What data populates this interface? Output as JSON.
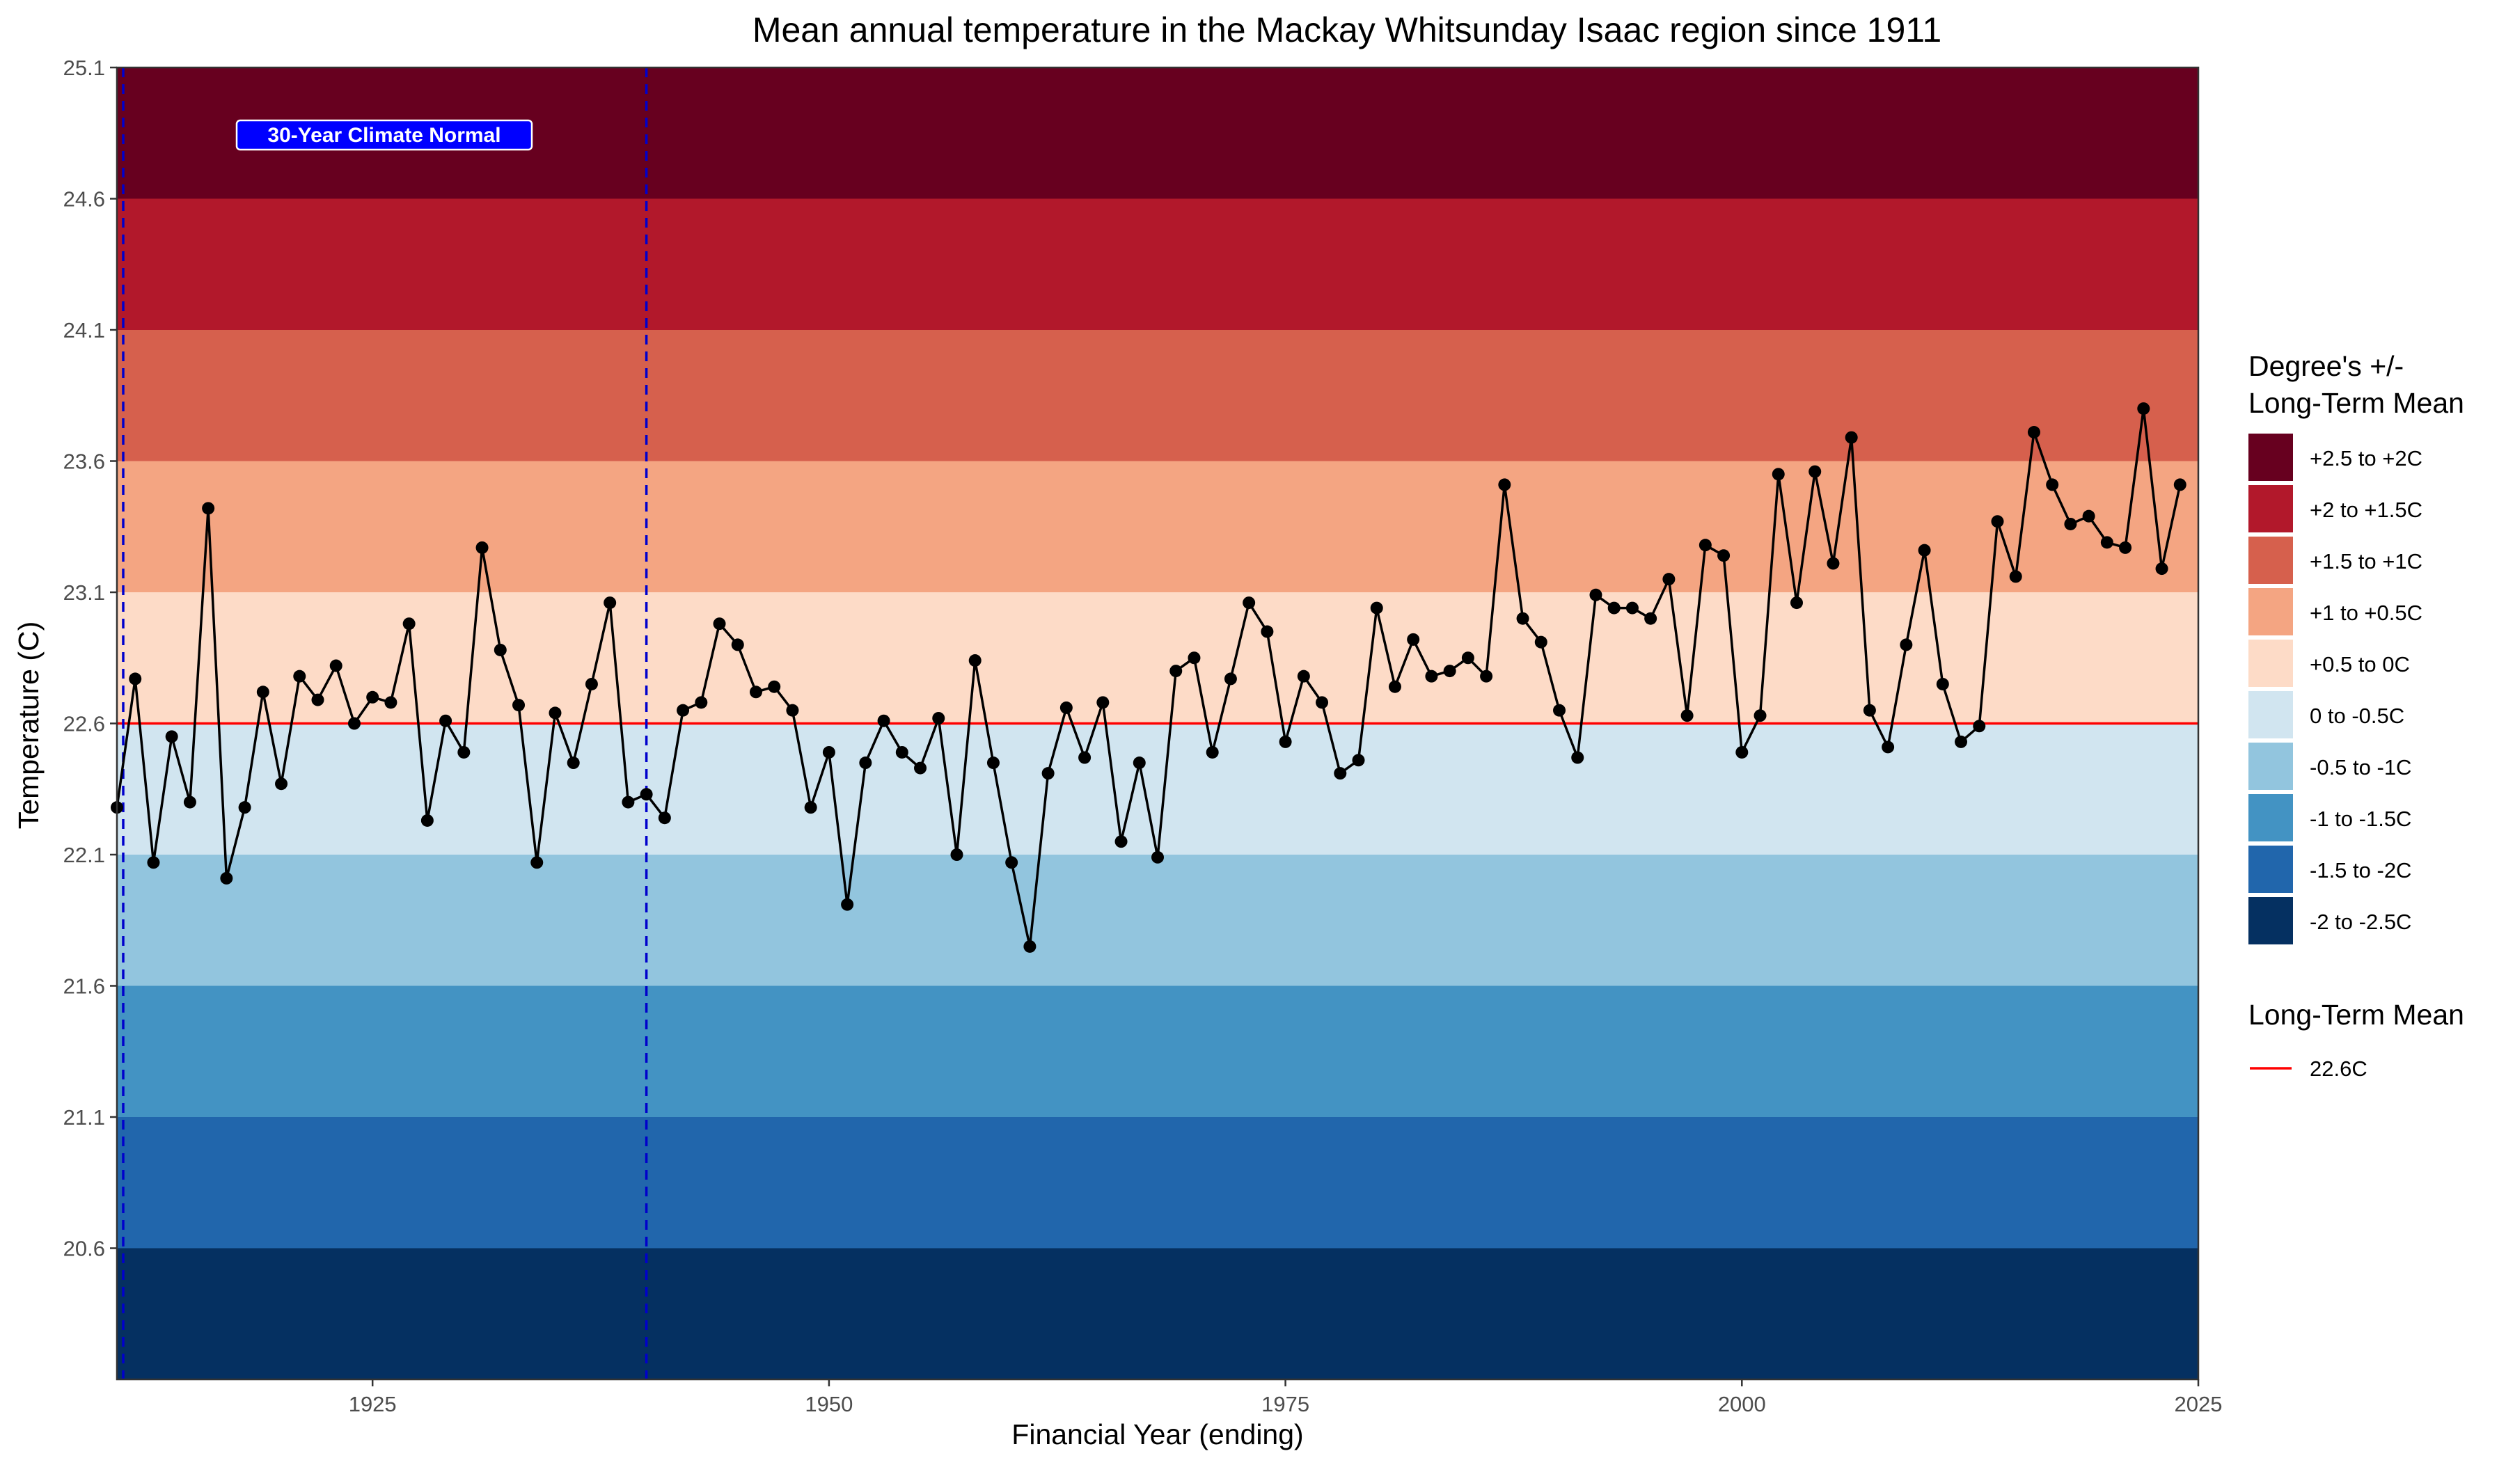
{
  "chart_data": {
    "type": "line",
    "title": "Mean annual temperature in the Mackay Whitsunday Isaac region since 1911",
    "xlabel": "Financial Year (ending)",
    "ylabel": "Temperature (C)",
    "xlim": [
      1911,
      2025
    ],
    "ylim": [
      20.1,
      25.1
    ],
    "x_ticks": [
      1925,
      1950,
      1975,
      2000,
      2025
    ],
    "y_ticks": [
      20.6,
      21.1,
      21.6,
      22.1,
      22.6,
      23.1,
      23.6,
      24.1,
      24.6,
      25.1
    ],
    "grid": false,
    "long_term_mean": 22.6,
    "climate_normal": {
      "label": "30-Year Climate Normal",
      "start": 1911,
      "end": 1940
    },
    "bands": [
      {
        "label": "+2.5 to +2C",
        "from": 24.6,
        "to": 25.1,
        "color": "#67001F"
      },
      {
        "label": "+2 to +1.5C",
        "from": 24.1,
        "to": 24.6,
        "color": "#B2182B"
      },
      {
        "label": "+1.5 to +1C",
        "from": 23.6,
        "to": 24.1,
        "color": "#D6604D"
      },
      {
        "label": "+1 to +0.5C",
        "from": 23.1,
        "to": 23.6,
        "color": "#F4A582"
      },
      {
        "label": "+0.5 to 0C",
        "from": 22.6,
        "to": 23.1,
        "color": "#FDDBC7"
      },
      {
        "label": "0 to -0.5C",
        "from": 22.1,
        "to": 22.6,
        "color": "#D1E5F0"
      },
      {
        "label": "-0.5 to -1C",
        "from": 21.6,
        "to": 22.1,
        "color": "#92C5DE"
      },
      {
        "label": "-1 to -1.5C",
        "from": 21.1,
        "to": 21.6,
        "color": "#4393C3"
      },
      {
        "label": "-1.5 to -2C",
        "from": 20.6,
        "to": 21.1,
        "color": "#2166AC"
      },
      {
        "label": "-2 to -2.5C",
        "from": 20.1,
        "to": 20.6,
        "color": "#053061"
      }
    ],
    "legend": {
      "bands_title": "Degree's +/-\nLong-Term Mean",
      "mean_title": "Long-Term Mean",
      "mean_label": "22.6C",
      "position": "right"
    },
    "colors": {
      "mean_line": "#FF0000",
      "normal_line": "#0000CC",
      "series": "#000000",
      "normal_label_bg": "#0000FF"
    },
    "series": [
      {
        "x": [
          1911,
          1912,
          1913,
          1914,
          1915,
          1916,
          1917,
          1918,
          1919,
          1920,
          1921,
          1922,
          1923,
          1924,
          1925,
          1926,
          1927,
          1928,
          1929,
          1930,
          1931,
          1932,
          1933,
          1934,
          1935,
          1936,
          1937,
          1938,
          1939,
          1940,
          1941,
          1942,
          1943,
          1944,
          1945,
          1946,
          1947,
          1948,
          1949,
          1950,
          1951,
          1952,
          1953,
          1954,
          1955,
          1956,
          1957,
          1958,
          1959,
          1960,
          1961,
          1962,
          1963,
          1964,
          1965,
          1966,
          1967,
          1968,
          1969,
          1970,
          1971,
          1972,
          1973,
          1974,
          1975,
          1976,
          1977,
          1978,
          1979,
          1980,
          1981,
          1982,
          1983,
          1984,
          1985,
          1986,
          1987,
          1988,
          1989,
          1990,
          1991,
          1992,
          1993,
          1994,
          1995,
          1996,
          1997,
          1998,
          1999,
          2000,
          2001,
          2002,
          2003,
          2004,
          2005,
          2006,
          2007,
          2008,
          2009,
          2010,
          2011,
          2012,
          2013,
          2014,
          2015,
          2016,
          2017,
          2018,
          2019,
          2020,
          2021,
          2022,
          2023,
          2024
        ],
        "values": [
          22.28,
          22.77,
          22.07,
          22.55,
          22.3,
          23.42,
          22.01,
          22.28,
          22.72,
          22.37,
          22.78,
          22.69,
          22.82,
          22.6,
          22.7,
          22.68,
          22.98,
          22.23,
          22.61,
          22.49,
          23.27,
          22.88,
          22.67,
          22.07,
          22.64,
          22.45,
          22.75,
          23.06,
          22.3,
          22.33,
          22.24,
          22.65,
          22.68,
          22.98,
          22.9,
          22.72,
          22.74,
          22.65,
          22.28,
          22.49,
          21.91,
          22.45,
          22.61,
          22.49,
          22.43,
          22.62,
          22.1,
          22.84,
          22.45,
          22.07,
          21.75,
          22.41,
          22.66,
          22.47,
          22.68,
          22.15,
          22.45,
          22.09,
          22.8,
          22.85,
          22.49,
          22.77,
          23.06,
          22.95,
          22.53,
          22.78,
          22.68,
          22.41,
          22.46,
          23.04,
          22.74,
          22.92,
          22.78,
          22.8,
          22.85,
          22.78,
          23.51,
          23.0,
          22.91,
          22.65,
          22.47,
          23.09,
          23.04,
          23.04,
          23.0,
          23.15,
          22.63,
          23.28,
          23.24,
          22.49,
          22.63,
          23.55,
          23.06,
          23.56,
          23.21,
          23.69,
          22.65,
          22.51,
          22.9,
          23.26,
          22.75,
          22.53,
          22.59,
          23.37,
          23.16,
          23.71,
          23.51,
          23.36,
          23.39,
          23.29,
          23.27,
          23.8,
          23.19,
          23.51
        ]
      }
    ]
  }
}
